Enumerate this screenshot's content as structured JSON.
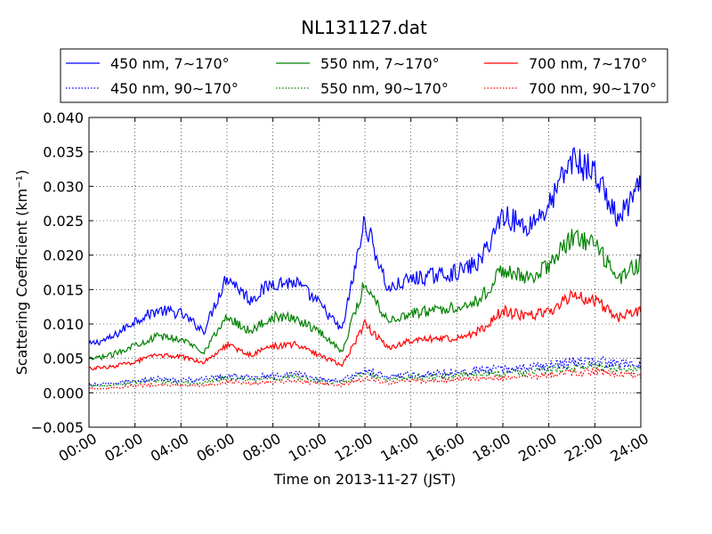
{
  "chart_data": {
    "type": "line",
    "title": "NL131127.dat",
    "xlabel": "Time on 2013-11-27 (JST)",
    "ylabel": "Scattering Coefficient (km⁻¹)",
    "xlim": [
      "00:00",
      "24:00"
    ],
    "ylim": [
      -0.005,
      0.04
    ],
    "grid": true,
    "legend_position": "top",
    "x_tick_labels": [
      "00:00",
      "02:00",
      "04:00",
      "06:00",
      "08:00",
      "10:00",
      "12:00",
      "14:00",
      "16:00",
      "18:00",
      "20:00",
      "22:00",
      "24:00"
    ],
    "y_tick_labels": [
      "−0.005",
      "0.000",
      "0.005",
      "0.010",
      "0.015",
      "0.020",
      "0.025",
      "0.030",
      "0.035",
      "0.040"
    ],
    "y_tick_values": [
      -0.005,
      0,
      0.005,
      0.01,
      0.015,
      0.02,
      0.025,
      0.03,
      0.035,
      0.04
    ],
    "x": [
      0,
      1,
      2,
      3,
      4,
      5,
      6,
      7,
      8,
      9,
      10,
      11,
      12,
      13,
      14,
      15,
      16,
      17,
      18,
      19,
      20,
      21,
      22,
      23,
      24
    ],
    "series": [
      {
        "name": "450 nm, 7∼170°",
        "color": "#0000ff",
        "style": "solid",
        "values": [
          0.007,
          0.008,
          0.0105,
          0.012,
          0.0115,
          0.009,
          0.017,
          0.0135,
          0.016,
          0.016,
          0.013,
          0.009,
          0.025,
          0.015,
          0.0165,
          0.017,
          0.0175,
          0.019,
          0.026,
          0.024,
          0.027,
          0.034,
          0.032,
          0.025,
          0.03
        ]
      },
      {
        "name": "450 nm, 90∼170°",
        "color": "#0000ff",
        "style": "dotted",
        "values": [
          0.0012,
          0.0013,
          0.0018,
          0.002,
          0.0018,
          0.002,
          0.0025,
          0.0022,
          0.0025,
          0.0028,
          0.002,
          0.0018,
          0.0032,
          0.0024,
          0.0026,
          0.0028,
          0.003,
          0.0033,
          0.0034,
          0.0036,
          0.004,
          0.0044,
          0.0046,
          0.0042,
          0.004
        ]
      },
      {
        "name": "550 nm, 7∼170°",
        "color": "#008000",
        "style": "solid",
        "values": [
          0.0048,
          0.0055,
          0.007,
          0.0082,
          0.0078,
          0.006,
          0.011,
          0.009,
          0.011,
          0.0108,
          0.009,
          0.006,
          0.016,
          0.0105,
          0.0115,
          0.012,
          0.0125,
          0.0135,
          0.018,
          0.0165,
          0.0185,
          0.0225,
          0.0215,
          0.0165,
          0.019
        ]
      },
      {
        "name": "550 nm, 90∼170°",
        "color": "#008000",
        "style": "dotted",
        "values": [
          0.001,
          0.0011,
          0.0015,
          0.0017,
          0.0015,
          0.0016,
          0.0021,
          0.0019,
          0.0021,
          0.0023,
          0.0017,
          0.0015,
          0.0027,
          0.002,
          0.0022,
          0.0024,
          0.0025,
          0.0028,
          0.0028,
          0.003,
          0.0033,
          0.0037,
          0.0039,
          0.0035,
          0.0033
        ]
      },
      {
        "name": "700 nm, 7∼170°",
        "color": "#ff0000",
        "style": "solid",
        "values": [
          0.0035,
          0.0038,
          0.0045,
          0.0055,
          0.0052,
          0.0045,
          0.007,
          0.0055,
          0.0068,
          0.007,
          0.0055,
          0.004,
          0.01,
          0.0065,
          0.0075,
          0.0078,
          0.008,
          0.009,
          0.012,
          0.011,
          0.0118,
          0.014,
          0.0135,
          0.011,
          0.012
        ]
      },
      {
        "name": "700 nm, 90∼170°",
        "color": "#ff0000",
        "style": "dotted",
        "values": [
          0.0006,
          0.0007,
          0.001,
          0.0012,
          0.001,
          0.0011,
          0.0016,
          0.0014,
          0.0016,
          0.0018,
          0.0013,
          0.0011,
          0.0021,
          0.0015,
          0.0017,
          0.0018,
          0.0019,
          0.0021,
          0.0022,
          0.0024,
          0.0026,
          0.0029,
          0.0031,
          0.0027,
          0.0025
        ]
      }
    ]
  }
}
